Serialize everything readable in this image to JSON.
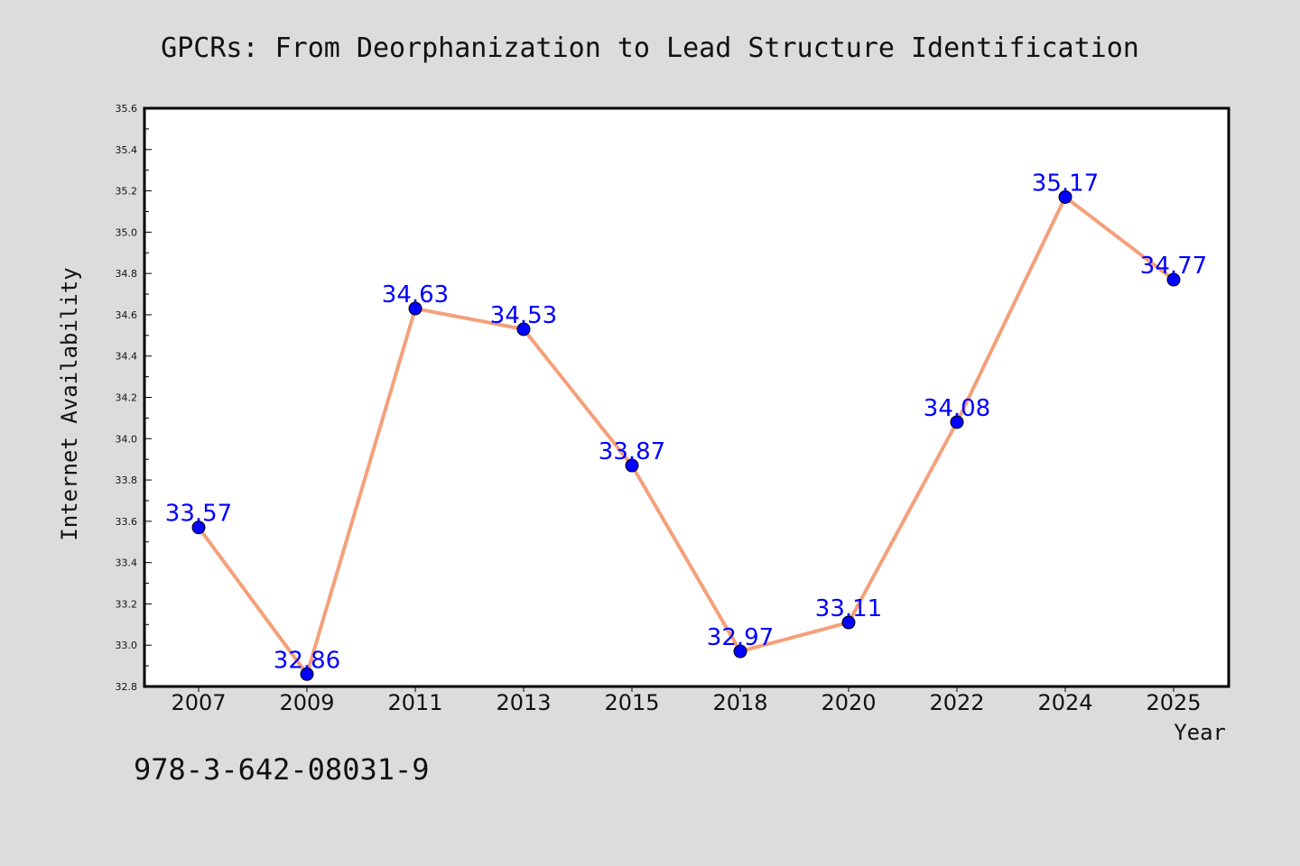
{
  "chart_data": {
    "type": "line",
    "title": "GPCRs: From Deorphanization to Lead Structure Identification",
    "xlabel": "Year",
    "ylabel": "Internet Availability",
    "categories": [
      "2007",
      "2009",
      "2011",
      "2013",
      "2015",
      "2018",
      "2020",
      "2022",
      "2024",
      "2025"
    ],
    "series": [
      {
        "values": [
          33.57,
          32.86,
          34.63,
          34.53,
          33.87,
          32.97,
          33.11,
          34.08,
          35.17,
          34.77
        ],
        "labels": [
          "33.57",
          "32.86",
          "34.63",
          "34.53",
          "33.87",
          "32.97",
          "33.11",
          "34.08",
          "35.17",
          "34.77"
        ]
      }
    ],
    "ylim": [
      32.8,
      35.6
    ],
    "yticks": [
      "32.8",
      "33.0",
      "33.2",
      "33.4",
      "33.6",
      "33.8",
      "34.0",
      "34.2",
      "34.4",
      "34.6",
      "34.8",
      "35.0",
      "35.2",
      "35.4",
      "35.6"
    ],
    "grid": false,
    "legend": "none",
    "colors": {
      "line": "#f4a07a",
      "marker": "#0000ff",
      "data_label": "#0000ff",
      "background": "#dcdcdc",
      "plot_background": "#ffffff"
    }
  },
  "footer": {
    "isbn": "978-3-642-08031-9"
  }
}
